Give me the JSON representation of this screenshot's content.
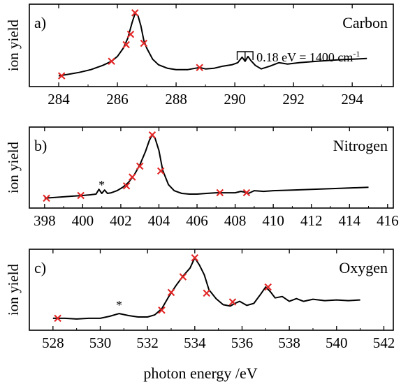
{
  "figure": {
    "shared_xlabel": "photon energy /eV"
  },
  "chart_data": [
    {
      "type": "line",
      "panel_label": "a)",
      "element_label": "Carbon",
      "ylabel": "ion yield",
      "annotation": {
        "text": "0.18 eV = 1400 cm",
        "superscript": "-1",
        "bracket_x": [
          290.2,
          290.5
        ]
      },
      "xlim": [
        283,
        295.4
      ],
      "ylim": [
        0,
        1
      ],
      "xticks": [
        284,
        286,
        288,
        290,
        292,
        294
      ],
      "series": [
        {
          "color": "#000000",
          "x": [
            284.0,
            284.3,
            284.7,
            285.1,
            285.5,
            285.8,
            286.0,
            286.2,
            286.35,
            286.5,
            286.6,
            286.7,
            286.8,
            286.9,
            287.0,
            287.2,
            287.4,
            287.7,
            288.0,
            288.4,
            288.8,
            289.0,
            289.3,
            289.6,
            289.9,
            290.1,
            290.25,
            290.35,
            290.45,
            290.55,
            290.7,
            290.9,
            291.2,
            291.5,
            291.8,
            292.2,
            292.8,
            293.5,
            294.0,
            294.5
          ],
          "y": [
            0.06,
            0.08,
            0.11,
            0.15,
            0.21,
            0.27,
            0.34,
            0.46,
            0.6,
            0.83,
            0.96,
            0.93,
            0.78,
            0.57,
            0.46,
            0.3,
            0.22,
            0.17,
            0.15,
            0.15,
            0.18,
            0.16,
            0.17,
            0.2,
            0.22,
            0.25,
            0.33,
            0.27,
            0.34,
            0.28,
            0.21,
            0.16,
            0.2,
            0.25,
            0.23,
            0.25,
            0.27,
            0.29,
            0.3,
            0.31
          ]
        }
      ],
      "markers": {
        "symbol": "x",
        "color": "#e32626",
        "x": [
          284.1,
          285.8,
          286.3,
          286.45,
          286.6,
          286.9,
          288.8
        ],
        "y": [
          0.06,
          0.27,
          0.51,
          0.66,
          0.97,
          0.53,
          0.18
        ]
      }
    },
    {
      "type": "line",
      "panel_label": "b)",
      "element_label": "Nitrogen",
      "ylabel": "ion yield",
      "annotation": {
        "text": "*",
        "x": 401.0
      },
      "xlim": [
        397.2,
        416.3
      ],
      "ylim": [
        0,
        1
      ],
      "xticks": [
        398,
        400,
        402,
        404,
        406,
        408,
        410,
        412,
        414,
        416
      ],
      "series": [
        {
          "color": "#000000",
          "x": [
            398.0,
            398.5,
            399.0,
            399.5,
            400.0,
            400.4,
            400.7,
            400.85,
            401.0,
            401.15,
            401.3,
            401.5,
            401.8,
            402.1,
            402.4,
            402.7,
            403.0,
            403.3,
            403.5,
            403.65,
            403.8,
            404.0,
            404.2,
            404.5,
            404.8,
            405.2,
            405.6,
            406.0,
            406.5,
            407.0,
            407.5,
            408.0,
            408.3,
            408.5,
            408.7,
            409.0,
            409.5,
            410.0,
            411.0,
            412.0,
            413.0,
            414.0,
            415.0
          ],
          "y": [
            0.05,
            0.06,
            0.07,
            0.08,
            0.09,
            0.1,
            0.11,
            0.18,
            0.12,
            0.17,
            0.12,
            0.13,
            0.16,
            0.21,
            0.28,
            0.39,
            0.54,
            0.74,
            0.9,
            0.98,
            0.93,
            0.75,
            0.46,
            0.25,
            0.16,
            0.12,
            0.11,
            0.11,
            0.12,
            0.13,
            0.13,
            0.13,
            0.15,
            0.14,
            0.12,
            0.16,
            0.15,
            0.16,
            0.17,
            0.18,
            0.19,
            0.2,
            0.21
          ]
        }
      ],
      "markers": {
        "symbol": "x",
        "color": "#e32626",
        "x": [
          398.1,
          399.9,
          402.3,
          402.6,
          403.0,
          403.65,
          404.1,
          407.2,
          408.6
        ],
        "y": [
          0.05,
          0.09,
          0.23,
          0.36,
          0.52,
          0.98,
          0.45,
          0.13,
          0.13
        ]
      }
    },
    {
      "type": "line",
      "panel_label": "c)",
      "element_label": "Oxygen",
      "ylabel": "ion yield",
      "annotation": {
        "text": "*",
        "x": 530.8
      },
      "xlim": [
        527,
        542.4
      ],
      "ylim": [
        0,
        1
      ],
      "xticks": [
        528,
        530,
        532,
        534,
        536,
        538,
        540,
        542
      ],
      "series": [
        {
          "color": "#000000",
          "x": [
            528.0,
            528.5,
            529.0,
            529.5,
            530.0,
            530.4,
            530.8,
            531.2,
            531.6,
            532.0,
            532.3,
            532.6,
            532.9,
            533.2,
            533.5,
            533.8,
            534.0,
            534.2,
            534.4,
            534.6,
            534.9,
            535.2,
            535.5,
            535.7,
            535.9,
            536.2,
            536.5,
            536.8,
            537.0,
            537.2,
            537.4,
            537.7,
            538.0,
            538.3,
            538.6,
            539.0,
            539.5,
            540.0,
            540.5,
            541.0
          ],
          "y": [
            0.08,
            0.08,
            0.07,
            0.08,
            0.08,
            0.11,
            0.15,
            0.12,
            0.1,
            0.1,
            0.13,
            0.22,
            0.4,
            0.56,
            0.7,
            0.82,
            0.97,
            0.86,
            0.72,
            0.5,
            0.37,
            0.28,
            0.26,
            0.3,
            0.33,
            0.27,
            0.3,
            0.44,
            0.54,
            0.47,
            0.38,
            0.4,
            0.33,
            0.37,
            0.33,
            0.36,
            0.34,
            0.35,
            0.34,
            0.35
          ]
        }
      ],
      "markers": {
        "symbol": "x",
        "color": "#e32626",
        "x": [
          528.2,
          532.6,
          533.0,
          533.5,
          534.0,
          534.5,
          535.6,
          537.1
        ],
        "y": [
          0.08,
          0.2,
          0.46,
          0.69,
          0.97,
          0.45,
          0.32,
          0.54
        ]
      }
    }
  ]
}
